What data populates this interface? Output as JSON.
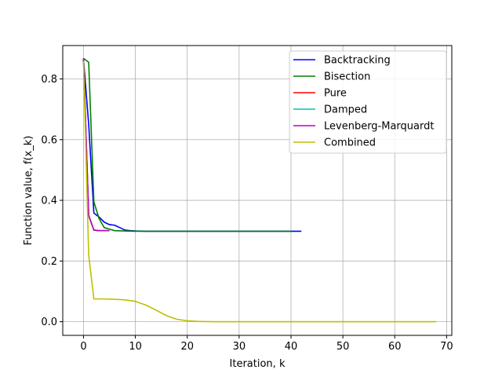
{
  "chart_data": {
    "type": "line",
    "title": "",
    "xlabel": "Iteration, k",
    "ylabel": "Function value, f(x_k)",
    "xlim": [
      -4,
      71
    ],
    "ylim": [
      -0.045,
      0.91
    ],
    "xticks": [
      0,
      10,
      20,
      30,
      40,
      50,
      60,
      70
    ],
    "yticks": [
      0.0,
      0.2,
      0.4,
      0.6,
      0.8
    ],
    "xtick_labels": [
      "0",
      "10",
      "20",
      "30",
      "40",
      "50",
      "60",
      "70"
    ],
    "ytick_labels": [
      "0.0",
      "0.2",
      "0.4",
      "0.6",
      "0.8"
    ],
    "grid": true,
    "legend_position": "top-right",
    "series": [
      {
        "name": "Backtracking",
        "color": "#0000ff",
        "x": [
          0,
          1,
          2,
          3,
          4,
          5,
          6,
          7,
          8,
          9,
          10,
          12,
          15,
          20,
          30,
          42
        ],
        "y": [
          0.865,
          0.65,
          0.358,
          0.345,
          0.328,
          0.32,
          0.318,
          0.31,
          0.302,
          0.3,
          0.299,
          0.298,
          0.298,
          0.298,
          0.298,
          0.298
        ]
      },
      {
        "name": "Bisection",
        "color": "#008000",
        "x": [
          0,
          1,
          2,
          3,
          4,
          5,
          6,
          8,
          10,
          20,
          30,
          40
        ],
        "y": [
          0.868,
          0.855,
          0.395,
          0.34,
          0.31,
          0.305,
          0.3,
          0.299,
          0.298,
          0.298,
          0.298,
          0.298
        ]
      },
      {
        "name": "Pure",
        "color": "#ff0000",
        "x": [
          0,
          1,
          2,
          3,
          4,
          5
        ],
        "y": [
          0.868,
          0.35,
          0.302,
          0.3,
          0.3,
          0.3
        ]
      },
      {
        "name": "Damped",
        "color": "#00bfbf",
        "x": [
          0,
          1,
          2,
          3,
          4,
          5
        ],
        "y": [
          0.868,
          0.35,
          0.302,
          0.3,
          0.3,
          0.3
        ]
      },
      {
        "name": "Levenberg-Marquardt",
        "color": "#bf00bf",
        "x": [
          0,
          1,
          2,
          3,
          4,
          5
        ],
        "y": [
          0.868,
          0.35,
          0.302,
          0.3,
          0.3,
          0.3
        ]
      },
      {
        "name": "Combined",
        "color": "#bfbf00",
        "x": [
          0,
          1,
          2,
          4,
          6,
          8,
          10,
          12,
          14,
          16,
          18,
          20,
          22,
          25,
          30,
          40,
          50,
          60,
          68
        ],
        "y": [
          0.858,
          0.22,
          0.075,
          0.075,
          0.074,
          0.072,
          0.067,
          0.055,
          0.038,
          0.02,
          0.008,
          0.003,
          0.001,
          0.0,
          0.0,
          0.0,
          0.0,
          0.0,
          0.0
        ]
      }
    ]
  }
}
